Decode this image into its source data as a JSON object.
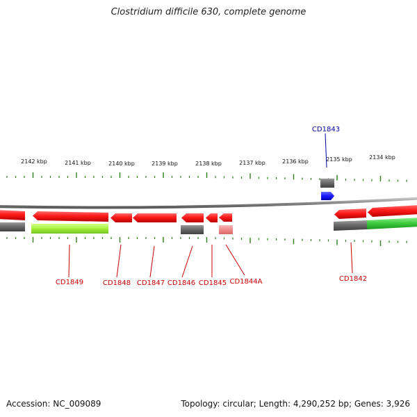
{
  "title": "Clostridium difficile 630, complete genome",
  "footer": {
    "accession": "Accession: NC_009089",
    "summary": "Topology: circular; Length: 4,290,252 bp; Genes: 3,926"
  },
  "scale": {
    "unit": "kbp",
    "labels": [
      "2142 kbp",
      "2141 kbp",
      "2140 kbp",
      "2139 kbp",
      "2138 kbp",
      "2137 kbp",
      "2136 kbp",
      "2135 kbp",
      "2134 kbp"
    ]
  },
  "genes": [
    {
      "id": "CD1849",
      "color": "#cc0000"
    },
    {
      "id": "CD1848",
      "color": "#cc0000"
    },
    {
      "id": "CD1847",
      "color": "#cc0000"
    },
    {
      "id": "CD1846",
      "color": "#cc0000"
    },
    {
      "id": "CD1845",
      "color": "#cc0000"
    },
    {
      "id": "CD1844A",
      "color": "#cc0000"
    },
    {
      "id": "CD1843",
      "color": "#0000aa"
    },
    {
      "id": "CD1842",
      "color": "#cc0000"
    }
  ],
  "colors": {
    "cds": "#ff1a1a",
    "gene": "#6b6b6b",
    "pseudogene": "#f08a8a",
    "rna_gene": "#1a1aff",
    "category_light": "#a6f03c",
    "category_green": "#3cc83c",
    "backbone": "#8c8c8c",
    "ticks": "#2e7d1e"
  }
}
